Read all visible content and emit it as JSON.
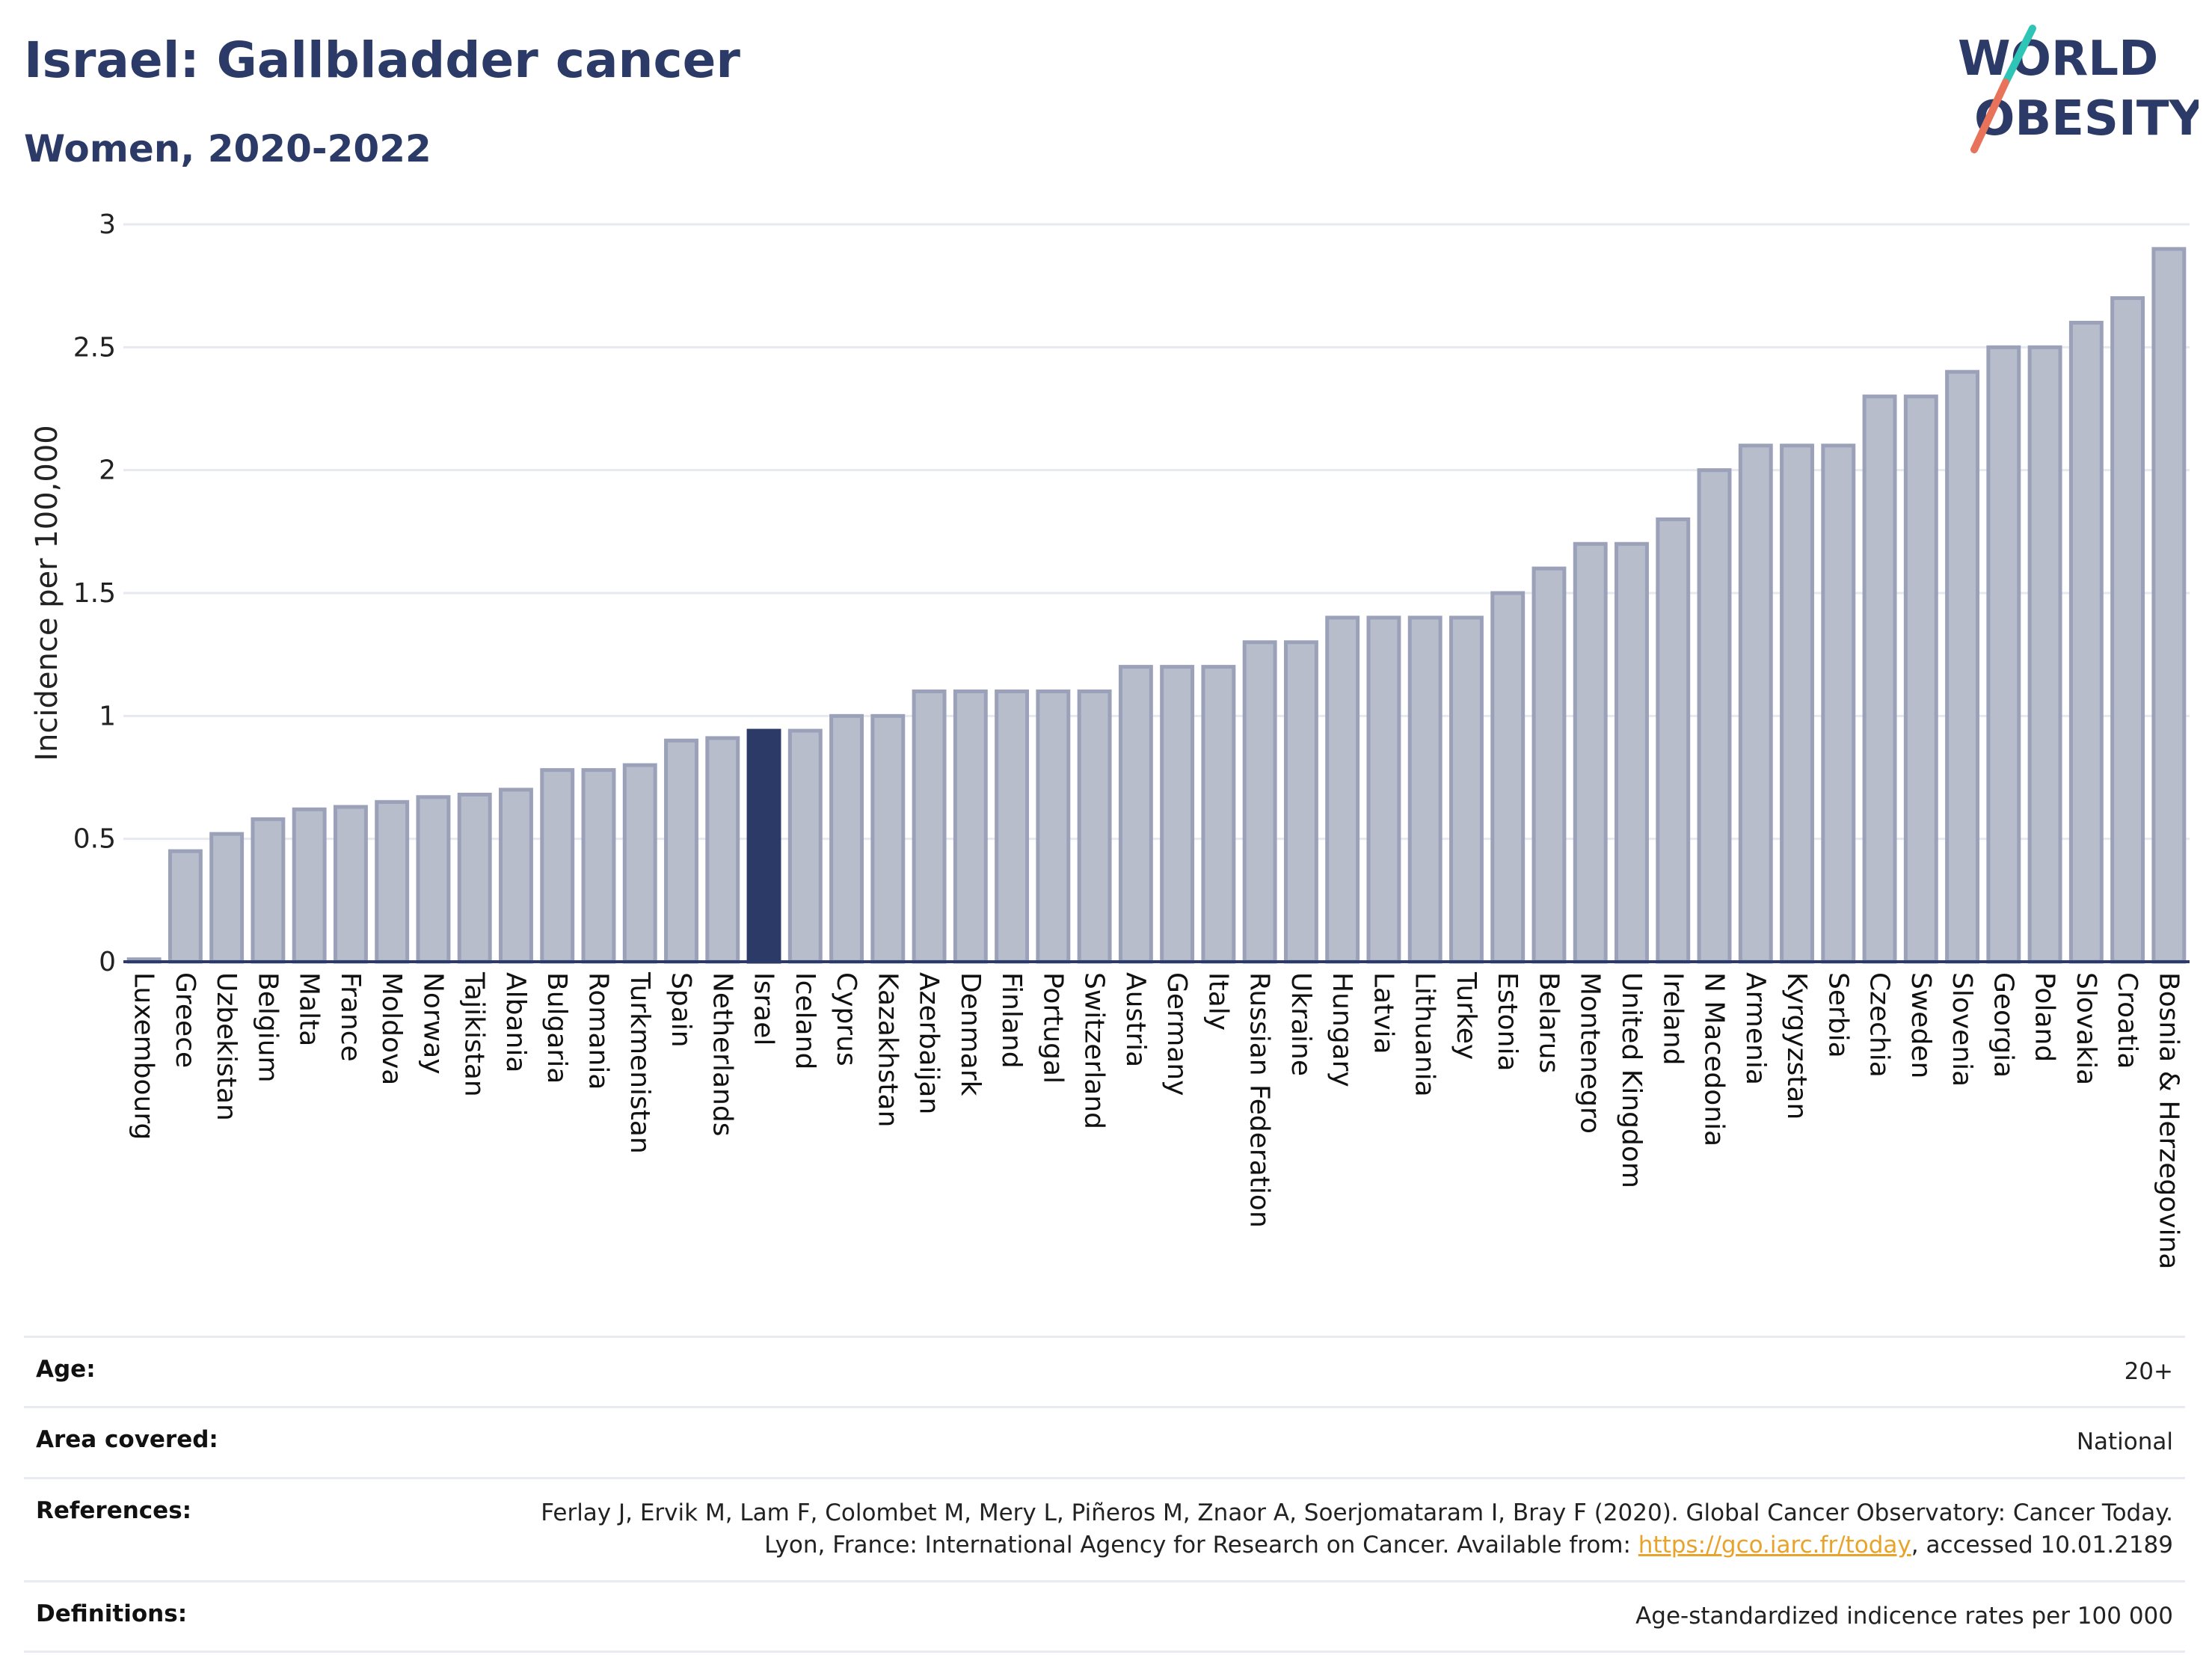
{
  "header": {
    "title": "Israel: Gallbladder cancer",
    "subtitle": "Women, 2020-2022"
  },
  "logo": {
    "line1": "WORLD",
    "line2": "OBESITY",
    "accent_colors": [
      "#2ec4b6",
      "#e8735a"
    ]
  },
  "chart_data": {
    "type": "bar",
    "title": "Israel: Gallbladder cancer",
    "subtitle": "Women, 2020-2022",
    "xlabel": "",
    "ylabel": "Incidence per 100,000",
    "ylim": [
      0,
      3
    ],
    "yticks": [
      "0",
      "0.5",
      "1",
      "1.5",
      "2",
      "2.5",
      "3"
    ],
    "grid": true,
    "highlight": "Israel",
    "colors": {
      "bar": "#b8bdcc",
      "bar_edge": "#9aa1b8",
      "highlight": "#2b3a67"
    },
    "categories": [
      "Luxembourg",
      "Greece",
      "Uzbekistan",
      "Belgium",
      "Malta",
      "France",
      "Moldova",
      "Norway",
      "Tajikistan",
      "Albania",
      "Bulgaria",
      "Romania",
      "Turkmenistan",
      "Spain",
      "Netherlands",
      "Israel",
      "Iceland",
      "Cyprus",
      "Kazakhstan",
      "Azerbaijan",
      "Denmark",
      "Finland",
      "Portugal",
      "Switzerland",
      "Austria",
      "Germany",
      "Italy",
      "Russian Federation",
      "Ukraine",
      "Hungary",
      "Latvia",
      "Lithuania",
      "Turkey",
      "Estonia",
      "Belarus",
      "Montenegro",
      "United Kingdom",
      "Ireland",
      "N Macedonia",
      "Armenia",
      "Kyrgyzstan",
      "Serbia",
      "Czechia",
      "Sweden",
      "Slovenia",
      "Georgia",
      "Poland",
      "Slovakia",
      "Croatia",
      "Bosnia & Herzegovina"
    ],
    "values": [
      0.01,
      0.45,
      0.52,
      0.58,
      0.62,
      0.63,
      0.65,
      0.67,
      0.68,
      0.7,
      0.78,
      0.78,
      0.8,
      0.9,
      0.91,
      0.94,
      0.94,
      1.0,
      1.0,
      1.1,
      1.1,
      1.1,
      1.1,
      1.1,
      1.2,
      1.2,
      1.2,
      1.3,
      1.3,
      1.4,
      1.4,
      1.4,
      1.4,
      1.5,
      1.6,
      1.7,
      1.7,
      1.8,
      2.0,
      2.1,
      2.1,
      2.1,
      2.3,
      2.3,
      2.4,
      2.5,
      2.5,
      2.6,
      2.7,
      2.9
    ]
  },
  "meta": {
    "age_label": "Age:",
    "age_value": "20+",
    "area_label": "Area covered:",
    "area_value": "National",
    "references_label": "References:",
    "references_text_1": "Ferlay J, Ervik M, Lam F, Colombet M, Mery L, Piñeros M, Znaor A, Soerjomataram I, Bray F (2020). Global Cancer Observatory: Cancer Today. Lyon, France: International Agency for Research on Cancer. Available from: ",
    "references_link": "https://gco.iarc.fr/today",
    "references_text_2": ", accessed 10.01.2189",
    "definitions_label": "Definitions:",
    "definitions_value": "Age-standardized indicence rates per 100 000"
  }
}
